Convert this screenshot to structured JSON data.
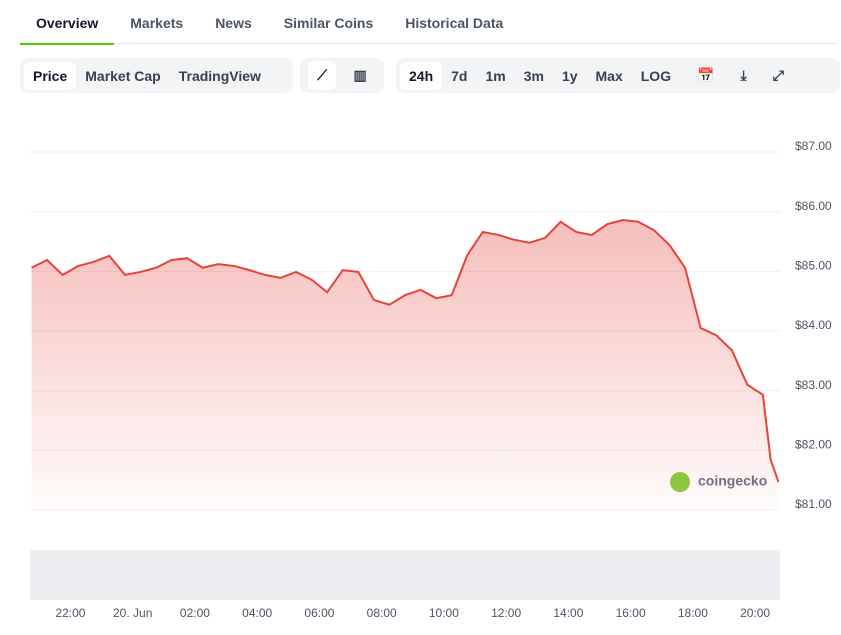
{
  "tabs": [
    "Overview",
    "Markets",
    "News",
    "Similar Coins",
    "Historical Data"
  ],
  "chart_modes": [
    "Price",
    "Market Cap",
    "TradingView"
  ],
  "ranges": [
    "24h",
    "7d",
    "1m",
    "3m",
    "1y",
    "Max",
    "LOG"
  ],
  "watermark": "coingecko",
  "chart_data": {
    "type": "area",
    "color": "#e5443b",
    "x": [
      -3.25,
      -2.75,
      -2.25,
      -1.75,
      -1.25,
      -0.75,
      -0.25,
      0.25,
      0.75,
      1.25,
      1.75,
      2.25,
      2.75,
      3.25,
      3.75,
      4.25,
      4.75,
      5.25,
      5.75,
      6.25,
      6.75,
      7.25,
      7.75,
      8.25,
      8.75,
      9.25,
      9.75,
      10.25,
      10.75,
      11.25,
      11.75,
      12.25,
      12.75,
      13.25,
      13.75,
      14.25,
      14.75,
      15.25,
      15.75,
      16.25,
      16.75,
      17.25,
      17.75,
      18.25,
      18.75,
      19.25,
      19.75,
      20.25,
      20.5,
      20.75
    ],
    "values": [
      85.06,
      85.19,
      84.94,
      85.09,
      85.16,
      85.26,
      84.94,
      84.99,
      85.06,
      85.19,
      85.22,
      85.06,
      85.12,
      85.09,
      85.02,
      84.94,
      84.89,
      84.99,
      84.86,
      84.65,
      85.02,
      84.99,
      84.52,
      84.44,
      84.6,
      84.69,
      84.55,
      84.6,
      85.27,
      85.66,
      85.61,
      85.53,
      85.48,
      85.56,
      85.83,
      85.66,
      85.61,
      85.79,
      85.86,
      85.83,
      85.69,
      85.44,
      85.06,
      84.05,
      83.93,
      83.68,
      83.1,
      82.93,
      81.84,
      81.47
    ],
    "xlim": [
      -3.3,
      20.8
    ],
    "xticks": [
      {
        "value": -2,
        "label": "22:00"
      },
      {
        "value": 0,
        "label": "20. Jun"
      },
      {
        "value": 2,
        "label": "02:00"
      },
      {
        "value": 4,
        "label": "04:00"
      },
      {
        "value": 6,
        "label": "06:00"
      },
      {
        "value": 8,
        "label": "08:00"
      },
      {
        "value": 10,
        "label": "10:00"
      },
      {
        "value": 12,
        "label": "12:00"
      },
      {
        "value": 14,
        "label": "14:00"
      },
      {
        "value": 16,
        "label": "16:00"
      },
      {
        "value": 18,
        "label": "18:00"
      },
      {
        "value": 20,
        "label": "20:00"
      }
    ],
    "ylim": [
      81,
      87
    ],
    "yticks": [
      {
        "value": 81,
        "label": "$81.00"
      },
      {
        "value": 82,
        "label": "$82.00"
      },
      {
        "value": 83,
        "label": "$83.00"
      },
      {
        "value": 84,
        "label": "$84.00"
      },
      {
        "value": 85,
        "label": "$85.00"
      },
      {
        "value": 86,
        "label": "$86.00"
      },
      {
        "value": 87,
        "label": "$87.00"
      }
    ],
    "grid": true
  }
}
